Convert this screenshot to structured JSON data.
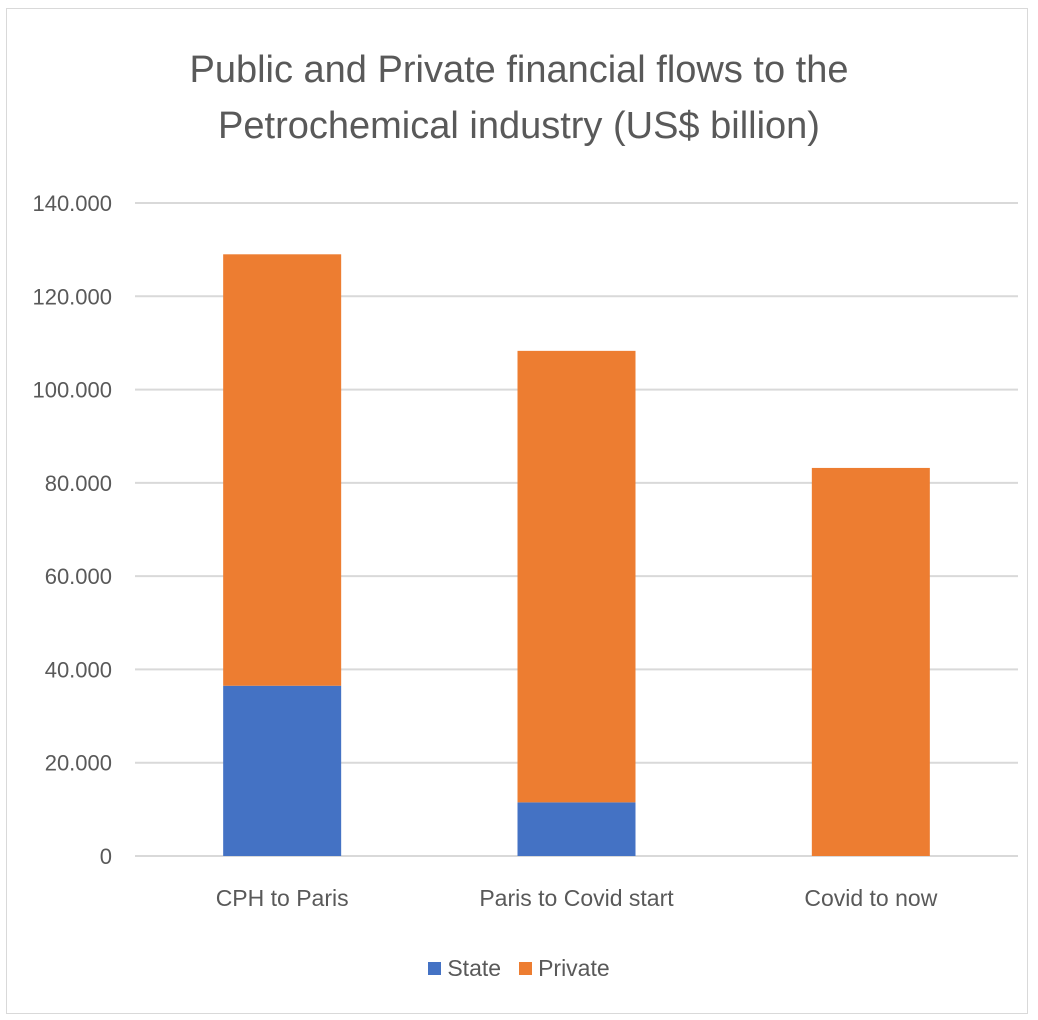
{
  "chart_data": {
    "type": "bar",
    "stacked": true,
    "title_lines": [
      "Public and Private financial flows to the",
      "Petrochemical industry (US$ billion)"
    ],
    "categories": [
      "CPH to Paris",
      "Paris to Covid start",
      "Covid to now"
    ],
    "series": [
      {
        "name": "State",
        "color": "#4472C4",
        "values": [
          36.5,
          11.5,
          0
        ]
      },
      {
        "name": "Private",
        "color": "#ED7D31",
        "values": [
          92.5,
          96.8,
          83.2
        ]
      }
    ],
    "ylim": [
      0,
      140
    ],
    "yticks": [
      0,
      20,
      40,
      60,
      80,
      100,
      120,
      140
    ],
    "ytick_labels": [
      "0",
      "20.000",
      "40.000",
      "60.000",
      "80.000",
      "100.000",
      "120.000",
      "140.000"
    ],
    "grid": true,
    "legend_position": "bottom"
  }
}
